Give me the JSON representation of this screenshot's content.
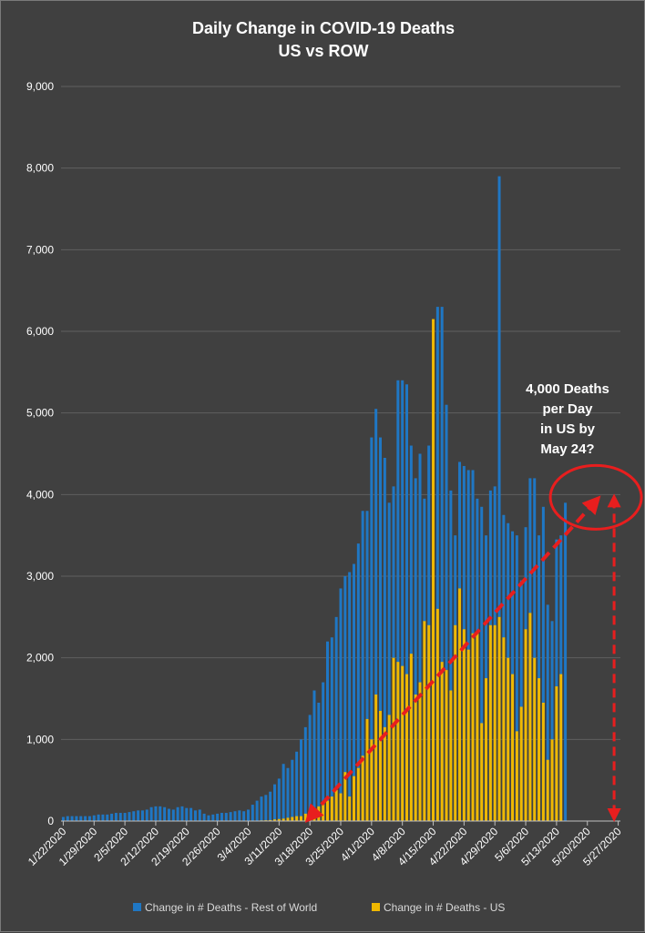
{
  "chart_data": {
    "type": "bar",
    "title": "Daily Change in COVID-19 Deaths",
    "subtitle": "US vs ROW",
    "ylim": [
      0,
      9000
    ],
    "y_ticks": [
      "0",
      "1,000",
      "2,000",
      "3,000",
      "4,000",
      "5,000",
      "6,000",
      "7,000",
      "8,000",
      "9,000"
    ],
    "x_tick_labels": [
      "1/22/2020",
      "1/29/2020",
      "2/5/2020",
      "2/12/2020",
      "2/19/2020",
      "2/26/2020",
      "3/4/2020",
      "3/11/2020",
      "3/18/2020",
      "3/25/2020",
      "4/1/2020",
      "4/8/2020",
      "4/15/2020",
      "4/22/2020",
      "4/29/2020",
      "5/6/2020",
      "5/13/2020",
      "5/20/2020",
      "5/27/2020"
    ],
    "x_start": "2020-01-22",
    "x_end": "2020-05-27",
    "grid": true,
    "legend_position": "bottom",
    "series": [
      {
        "name": "Change in # Deaths - Rest of World",
        "color": "#1f77c4",
        "values": [
          50,
          60,
          60,
          60,
          60,
          60,
          60,
          70,
          80,
          80,
          80,
          90,
          100,
          100,
          100,
          110,
          120,
          130,
          130,
          140,
          170,
          180,
          180,
          170,
          150,
          140,
          170,
          180,
          160,
          160,
          130,
          140,
          90,
          70,
          80,
          90,
          100,
          100,
          110,
          120,
          130,
          120,
          140,
          200,
          250,
          300,
          320,
          360,
          450,
          520,
          700,
          650,
          750,
          850,
          1000,
          1150,
          1300,
          1600,
          1450,
          1700,
          2200,
          2250,
          2500,
          2850,
          3000,
          3050,
          3150,
          3400,
          3800,
          3800,
          4700,
          5050,
          4700,
          4450,
          3900,
          4100,
          5400,
          5400,
          5350,
          4600,
          4200,
          4500,
          3950,
          4600,
          5000,
          6300,
          6300,
          5100,
          4050,
          3500,
          4400,
          4350,
          4300,
          4300,
          3950,
          3850,
          3500,
          4050,
          4100,
          7900,
          3750,
          3650,
          3550,
          3500,
          2950,
          3600,
          4200,
          4200,
          3500,
          3850,
          2650,
          2450,
          3450,
          3500,
          3900
        ],
        "has_values_through": "2020-05-16"
      },
      {
        "name": "Change in # Deaths - US",
        "color": "#f0b800",
        "values": [
          0,
          0,
          0,
          0,
          0,
          0,
          0,
          0,
          0,
          0,
          0,
          0,
          0,
          0,
          0,
          0,
          0,
          0,
          0,
          0,
          0,
          0,
          0,
          0,
          0,
          0,
          0,
          0,
          0,
          0,
          0,
          0,
          0,
          0,
          0,
          0,
          0,
          1,
          1,
          1,
          2,
          3,
          3,
          4,
          5,
          8,
          10,
          12,
          20,
          25,
          30,
          40,
          50,
          60,
          60,
          90,
          120,
          150,
          180,
          230,
          250,
          300,
          380,
          340,
          600,
          300,
          550,
          650,
          800,
          1250,
          1000,
          1550,
          1350,
          1150,
          1300,
          2000,
          1950,
          1900,
          1800,
          2050,
          1550,
          1700,
          2450,
          2400,
          6150,
          2600,
          1950,
          1850,
          1600,
          2400,
          2850,
          2350,
          2100,
          2300,
          2300,
          1200,
          1750,
          2400,
          2400,
          2500,
          2250,
          2000,
          1800,
          1100,
          1400,
          2350,
          2550,
          2000,
          1750,
          1450,
          750,
          1000,
          1650,
          1800,
          0
        ],
        "has_values_through": "2020-05-15"
      }
    ],
    "annotations": {
      "callout_lines": [
        "4,000 Deaths",
        "per Day",
        "in US by",
        "May 24?"
      ],
      "target_value": 4000,
      "target_date": "2020-05-24",
      "trend_start_date": "2020-03-18",
      "trend_start_value": 0,
      "circle_color": "#e81e1e",
      "arrow_color": "#e81e1e"
    }
  }
}
